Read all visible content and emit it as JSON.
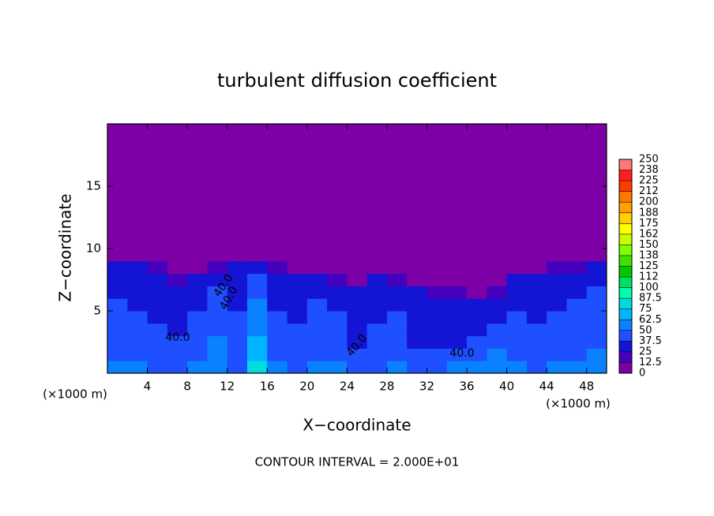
{
  "chart_data": {
    "type": "heatmap",
    "title": "turbulent diffusion coefficient",
    "x_label": "X−coordinate",
    "y_label": "Z−coordinate",
    "x_unit": "(×1000 m)",
    "x_unit_right": "(×1000 m)",
    "footnote": "CONTOUR INTERVAL = 2.000E+01",
    "xlim": [
      0,
      50
    ],
    "ylim": [
      0,
      20
    ],
    "xticks": [
      4,
      8,
      12,
      16,
      20,
      24,
      28,
      32,
      36,
      40,
      44,
      48
    ],
    "yticks": [
      5,
      10,
      15
    ],
    "x_edges": [
      0,
      2,
      4,
      6,
      8,
      10,
      12,
      14,
      16,
      18,
      20,
      22,
      24,
      26,
      28,
      30,
      32,
      34,
      36,
      38,
      40,
      42,
      44,
      46,
      48,
      50
    ],
    "y_edges": [
      0,
      1,
      2,
      3,
      4,
      5,
      6,
      7,
      8,
      9,
      20
    ],
    "z": [
      [
        55,
        50,
        48,
        45,
        52,
        60,
        48,
        75,
        50,
        45,
        55,
        50,
        48,
        45,
        50,
        45,
        48,
        52,
        55,
        55,
        50,
        48,
        50,
        55,
        58
      ],
      [
        48,
        45,
        42,
        40,
        45,
        55,
        45,
        70,
        45,
        42,
        48,
        45,
        40,
        42,
        45,
        40,
        42,
        45,
        48,
        50,
        45,
        42,
        45,
        48,
        52
      ],
      [
        45,
        42,
        40,
        38,
        42,
        50,
        42,
        65,
        42,
        40,
        45,
        42,
        35,
        40,
        42,
        35,
        30,
        35,
        40,
        45,
        42,
        40,
        42,
        45,
        48
      ],
      [
        42,
        40,
        38,
        35,
        40,
        45,
        40,
        60,
        40,
        38,
        42,
        40,
        35,
        38,
        40,
        30,
        25,
        30,
        35,
        40,
        40,
        38,
        40,
        42,
        45
      ],
      [
        40,
        38,
        36,
        35,
        38,
        42,
        38,
        55,
        38,
        36,
        40,
        38,
        35,
        36,
        38,
        35,
        30,
        28,
        30,
        35,
        38,
        36,
        38,
        40,
        42
      ],
      [
        38,
        36,
        35,
        34,
        36,
        40,
        36,
        50,
        36,
        35,
        38,
        36,
        34,
        35,
        36,
        34,
        32,
        30,
        28,
        32,
        36,
        35,
        36,
        38,
        40
      ],
      [
        36,
        35,
        34,
        33,
        35,
        38,
        35,
        45,
        35,
        34,
        36,
        30,
        28,
        33,
        34,
        25,
        20,
        15,
        10,
        20,
        34,
        33,
        35,
        36,
        38
      ],
      [
        35,
        34,
        30,
        20,
        25,
        35,
        34,
        40,
        34,
        30,
        25,
        15,
        10,
        30,
        20,
        5,
        5,
        3,
        2,
        5,
        30,
        32,
        34,
        35,
        36
      ],
      [
        30,
        30,
        20,
        5,
        3,
        15,
        25,
        25,
        20,
        10,
        5,
        3,
        2,
        5,
        3,
        0,
        0,
        0,
        0,
        0,
        5,
        10,
        15,
        20,
        25
      ],
      [
        0,
        0,
        0,
        0,
        0,
        0,
        0,
        0,
        0,
        0,
        0,
        0,
        0,
        0,
        0,
        0,
        0,
        0,
        0,
        0,
        0,
        0,
        0,
        0,
        0
      ]
    ],
    "colorbar": {
      "levels": [
        0,
        12.5,
        25,
        37.5,
        50,
        62.5,
        75,
        87.5,
        100,
        {
          "value": 112.5,
          "label": "112"
        },
        125,
        {
          "value": 137.5,
          "label": "138"
        },
        150,
        {
          "value": 162.5,
          "label": "162"
        },
        175,
        {
          "value": 187.5,
          "label": "188"
        },
        200,
        {
          "value": 212.5,
          "label": "212"
        },
        225,
        {
          "value": 237.5,
          "label": "238"
        },
        250
      ],
      "colors": [
        "#7d00a6",
        "#4400bc",
        "#1414d4",
        "#1e50ff",
        "#0a82ff",
        "#00b4ff",
        "#00dcdc",
        "#00ffaa",
        "#00e060",
        "#00c800",
        "#40e000",
        "#80ff00",
        "#c8ff00",
        "#ffff00",
        "#ffd200",
        "#ffa000",
        "#ff7800",
        "#ff3c00",
        "#ff1e1e",
        "#ff7878"
      ]
    },
    "contour_labels": [
      {
        "value": 40,
        "label": "40.0"
      },
      {
        "value": 40,
        "label": "40.0"
      },
      {
        "value": 40,
        "label": "40.0"
      },
      {
        "value": 40,
        "label": "40.0"
      },
      {
        "value": 40,
        "label": "40.0"
      }
    ]
  }
}
